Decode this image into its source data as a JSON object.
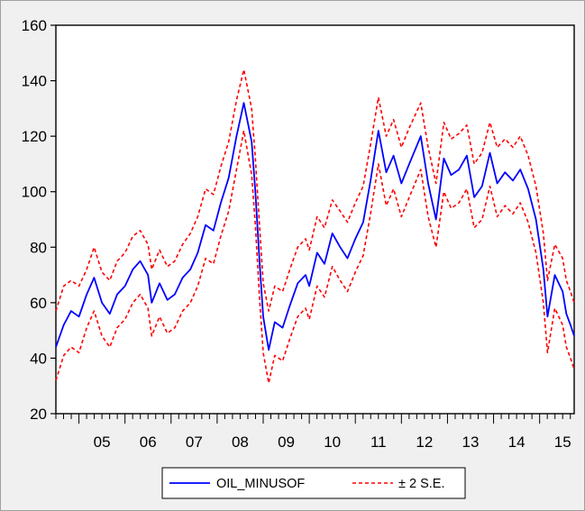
{
  "chart_data": {
    "type": "line",
    "title": "",
    "xlabel": "",
    "ylabel": "",
    "ylim": [
      20,
      160
    ],
    "yticks": [
      20,
      40,
      60,
      80,
      100,
      120,
      140,
      160
    ],
    "xlim": [
      2004.5,
      2015.75
    ],
    "x_tick_labels": [
      "05",
      "06",
      "07",
      "08",
      "09",
      "10",
      "11",
      "12",
      "13",
      "14",
      "15"
    ],
    "x_tick_centers": [
      2005.5,
      2006.5,
      2007.5,
      2008.5,
      2009.5,
      2010.5,
      2011.5,
      2012.5,
      2013.5,
      2014.5,
      2015.5
    ],
    "grid": false,
    "legend_position": "bottom-center",
    "series": [
      {
        "name": "OIL_MINUSOF",
        "color": "#0000ff",
        "style": "solid",
        "points": [
          [
            2004.5,
            44
          ],
          [
            2004.67,
            52
          ],
          [
            2004.83,
            57
          ],
          [
            2005.0,
            55
          ],
          [
            2005.17,
            63
          ],
          [
            2005.33,
            69
          ],
          [
            2005.5,
            60
          ],
          [
            2005.67,
            56
          ],
          [
            2005.83,
            63
          ],
          [
            2006.0,
            66
          ],
          [
            2006.17,
            72
          ],
          [
            2006.33,
            75
          ],
          [
            2006.5,
            70
          ],
          [
            2006.58,
            60
          ],
          [
            2006.75,
            67
          ],
          [
            2006.92,
            61
          ],
          [
            2007.08,
            63
          ],
          [
            2007.25,
            69
          ],
          [
            2007.42,
            72
          ],
          [
            2007.58,
            78
          ],
          [
            2007.75,
            88
          ],
          [
            2007.92,
            86
          ],
          [
            2008.08,
            96
          ],
          [
            2008.25,
            105
          ],
          [
            2008.42,
            120
          ],
          [
            2008.58,
            132
          ],
          [
            2008.75,
            118
          ],
          [
            2008.83,
            100
          ],
          [
            2008.92,
            75
          ],
          [
            2009.0,
            55
          ],
          [
            2009.12,
            43
          ],
          [
            2009.25,
            53
          ],
          [
            2009.42,
            51
          ],
          [
            2009.58,
            59
          ],
          [
            2009.75,
            67
          ],
          [
            2009.92,
            70
          ],
          [
            2010.0,
            66
          ],
          [
            2010.17,
            78
          ],
          [
            2010.33,
            74
          ],
          [
            2010.5,
            85
          ],
          [
            2010.67,
            80
          ],
          [
            2010.83,
            76
          ],
          [
            2011.0,
            83
          ],
          [
            2011.17,
            89
          ],
          [
            2011.33,
            104
          ],
          [
            2011.5,
            122
          ],
          [
            2011.67,
            107
          ],
          [
            2011.83,
            113
          ],
          [
            2012.0,
            103
          ],
          [
            2012.17,
            110
          ],
          [
            2012.42,
            120
          ],
          [
            2012.58,
            103
          ],
          [
            2012.75,
            90
          ],
          [
            2012.92,
            112
          ],
          [
            2013.08,
            106
          ],
          [
            2013.25,
            108
          ],
          [
            2013.42,
            113
          ],
          [
            2013.58,
            98
          ],
          [
            2013.75,
            102
          ],
          [
            2013.92,
            114
          ],
          [
            2014.08,
            103
          ],
          [
            2014.25,
            107
          ],
          [
            2014.42,
            104
          ],
          [
            2014.58,
            108
          ],
          [
            2014.75,
            101
          ],
          [
            2014.92,
            90
          ],
          [
            2015.08,
            72
          ],
          [
            2015.17,
            55
          ],
          [
            2015.33,
            70
          ],
          [
            2015.5,
            64
          ],
          [
            2015.58,
            56
          ],
          [
            2015.67,
            52
          ],
          [
            2015.75,
            48
          ]
        ]
      },
      {
        "name": "± 2 S.E.",
        "color": "#ff0000",
        "style": "dashed",
        "band": "upper",
        "points": [
          [
            2004.5,
            57
          ],
          [
            2004.67,
            66
          ],
          [
            2004.83,
            68
          ],
          [
            2005.0,
            66
          ],
          [
            2005.17,
            72
          ],
          [
            2005.33,
            80
          ],
          [
            2005.5,
            71
          ],
          [
            2005.67,
            68
          ],
          [
            2005.83,
            75
          ],
          [
            2006.0,
            78
          ],
          [
            2006.17,
            84
          ],
          [
            2006.33,
            86
          ],
          [
            2006.5,
            81
          ],
          [
            2006.58,
            72
          ],
          [
            2006.75,
            79
          ],
          [
            2006.92,
            73
          ],
          [
            2007.08,
            75
          ],
          [
            2007.25,
            81
          ],
          [
            2007.42,
            85
          ],
          [
            2007.58,
            91
          ],
          [
            2007.75,
            101
          ],
          [
            2007.92,
            99
          ],
          [
            2008.08,
            109
          ],
          [
            2008.25,
            118
          ],
          [
            2008.42,
            133
          ],
          [
            2008.58,
            144
          ],
          [
            2008.75,
            130
          ],
          [
            2008.83,
            112
          ],
          [
            2008.92,
            88
          ],
          [
            2009.0,
            67
          ],
          [
            2009.12,
            57
          ],
          [
            2009.25,
            66
          ],
          [
            2009.42,
            64
          ],
          [
            2009.58,
            72
          ],
          [
            2009.75,
            80
          ],
          [
            2009.92,
            83
          ],
          [
            2010.0,
            79
          ],
          [
            2010.17,
            91
          ],
          [
            2010.33,
            87
          ],
          [
            2010.5,
            97
          ],
          [
            2010.67,
            93
          ],
          [
            2010.83,
            89
          ],
          [
            2011.0,
            96
          ],
          [
            2011.17,
            102
          ],
          [
            2011.33,
            117
          ],
          [
            2011.5,
            134
          ],
          [
            2011.67,
            120
          ],
          [
            2011.83,
            126
          ],
          [
            2012.0,
            116
          ],
          [
            2012.17,
            123
          ],
          [
            2012.42,
            132
          ],
          [
            2012.58,
            116
          ],
          [
            2012.75,
            103
          ],
          [
            2012.92,
            125
          ],
          [
            2013.08,
            119
          ],
          [
            2013.25,
            121
          ],
          [
            2013.42,
            124
          ],
          [
            2013.58,
            110
          ],
          [
            2013.75,
            114
          ],
          [
            2013.92,
            125
          ],
          [
            2014.08,
            116
          ],
          [
            2014.25,
            119
          ],
          [
            2014.42,
            116
          ],
          [
            2014.58,
            120
          ],
          [
            2014.75,
            113
          ],
          [
            2014.92,
            102
          ],
          [
            2015.08,
            85
          ],
          [
            2015.17,
            68
          ],
          [
            2015.33,
            81
          ],
          [
            2015.5,
            76
          ],
          [
            2015.58,
            68
          ],
          [
            2015.67,
            64
          ],
          [
            2015.75,
            60
          ]
        ]
      },
      {
        "name": "± 2 S.E.",
        "color": "#ff0000",
        "style": "dashed",
        "band": "lower",
        "points": [
          [
            2004.5,
            32
          ],
          [
            2004.67,
            41
          ],
          [
            2004.83,
            44
          ],
          [
            2005.0,
            42
          ],
          [
            2005.17,
            51
          ],
          [
            2005.33,
            57
          ],
          [
            2005.5,
            48
          ],
          [
            2005.67,
            44
          ],
          [
            2005.83,
            51
          ],
          [
            2006.0,
            54
          ],
          [
            2006.17,
            60
          ],
          [
            2006.33,
            63
          ],
          [
            2006.5,
            58
          ],
          [
            2006.58,
            48
          ],
          [
            2006.75,
            55
          ],
          [
            2006.92,
            49
          ],
          [
            2007.08,
            51
          ],
          [
            2007.25,
            57
          ],
          [
            2007.42,
            60
          ],
          [
            2007.58,
            66
          ],
          [
            2007.75,
            76
          ],
          [
            2007.92,
            74
          ],
          [
            2008.08,
            84
          ],
          [
            2008.25,
            93
          ],
          [
            2008.42,
            108
          ],
          [
            2008.58,
            122
          ],
          [
            2008.75,
            106
          ],
          [
            2008.83,
            88
          ],
          [
            2008.92,
            62
          ],
          [
            2009.0,
            42
          ],
          [
            2009.12,
            31
          ],
          [
            2009.25,
            41
          ],
          [
            2009.42,
            39
          ],
          [
            2009.58,
            47
          ],
          [
            2009.75,
            55
          ],
          [
            2009.92,
            58
          ],
          [
            2010.0,
            54
          ],
          [
            2010.17,
            66
          ],
          [
            2010.33,
            62
          ],
          [
            2010.5,
            73
          ],
          [
            2010.67,
            68
          ],
          [
            2010.83,
            64
          ],
          [
            2011.0,
            71
          ],
          [
            2011.17,
            77
          ],
          [
            2011.33,
            92
          ],
          [
            2011.5,
            110
          ],
          [
            2011.67,
            95
          ],
          [
            2011.83,
            101
          ],
          [
            2012.0,
            91
          ],
          [
            2012.17,
            98
          ],
          [
            2012.42,
            108
          ],
          [
            2012.58,
            91
          ],
          [
            2012.75,
            80
          ],
          [
            2012.92,
            100
          ],
          [
            2013.08,
            94
          ],
          [
            2013.25,
            96
          ],
          [
            2013.42,
            101
          ],
          [
            2013.58,
            87
          ],
          [
            2013.75,
            90
          ],
          [
            2013.92,
            102
          ],
          [
            2014.08,
            91
          ],
          [
            2014.25,
            95
          ],
          [
            2014.42,
            92
          ],
          [
            2014.58,
            96
          ],
          [
            2014.75,
            89
          ],
          [
            2014.92,
            78
          ],
          [
            2015.08,
            60
          ],
          [
            2015.17,
            42
          ],
          [
            2015.33,
            58
          ],
          [
            2015.5,
            52
          ],
          [
            2015.58,
            44
          ],
          [
            2015.67,
            40
          ],
          [
            2015.75,
            36
          ]
        ]
      }
    ],
    "legend": [
      {
        "label": "OIL_MINUSOF",
        "color": "#0000ff",
        "style": "solid"
      },
      {
        "label": "± 2 S.E.",
        "color": "#ff0000",
        "style": "dashed"
      }
    ]
  }
}
